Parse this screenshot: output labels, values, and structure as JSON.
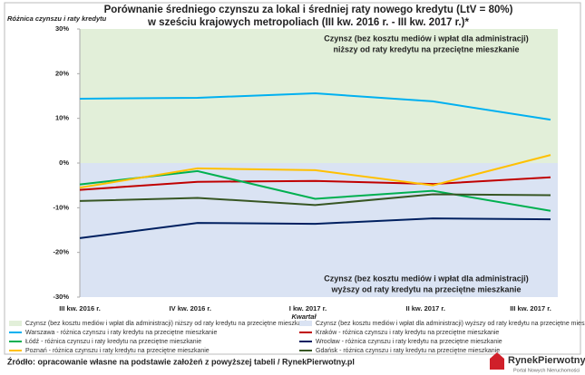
{
  "chart_data": {
    "type": "line",
    "title": [
      "Porównanie średniego czynszu za lokal i średniej raty nowego kredytu (LtV = 80%)",
      "w sześciu krajowych metropoliach (III kw. 2016 r. - III kw. 2017 r.)*"
    ],
    "ylabel": "Różnica czynszu i raty kredytu",
    "xlabel": "Kwartał",
    "categories": [
      "III kw. 2016 r.",
      "IV kw. 2016 r.",
      "I kw. 2017 r.",
      "II kw. 2017 r.",
      "III kw. 2017 r."
    ],
    "ylim": [
      -30,
      30
    ],
    "yticks": [
      {
        "value": 30,
        "label": "30%"
      },
      {
        "value": 20,
        "label": "20%"
      },
      {
        "value": 10,
        "label": "10%"
      },
      {
        "value": 0,
        "label": "0%"
      },
      {
        "value": -10,
        "label": "-10%"
      },
      {
        "value": -20,
        "label": "-20%"
      },
      {
        "value": -30,
        "label": "-30%"
      }
    ],
    "areas": [
      {
        "name": "Czynsz (bez kosztu mediów i wpłat dla administracji) niższy od raty kredytu na przeciętne mieszkanie",
        "color": "#e2efd9",
        "range": [
          0,
          30
        ]
      },
      {
        "name": "Czynsz (bez kosztu mediów i wpłat dla administracji) wyższy od raty kredytu na przeciętne mieszkanie",
        "color": "#dae3f3",
        "range": [
          -30,
          0
        ]
      }
    ],
    "series": [
      {
        "name": "Warszawa - różnica czynszu i raty kredytu na przeciętne mieszkanie",
        "color": "#00b0f0",
        "values": [
          14.4,
          14.6,
          15.6,
          13.8,
          9.7
        ]
      },
      {
        "name": "Kraków - różnica czynszu i raty kredytu na przeciętne mieszkanie",
        "color": "#c00000",
        "values": [
          -6.0,
          -4.2,
          -4.0,
          -4.7,
          -3.2
        ]
      },
      {
        "name": "Łódź - różnica czynszu i raty kredytu na przeciętne mieszkanie",
        "color": "#00b050",
        "values": [
          -4.8,
          -1.8,
          -8.0,
          -6.2,
          -10.7
        ]
      },
      {
        "name": "Wrocław - różnica czynszu i raty kredytu na przeciętne mieszkanie",
        "color": "#002060",
        "values": [
          -16.8,
          -13.4,
          -13.6,
          -12.4,
          -12.6
        ]
      },
      {
        "name": "Poznań - różnica czynszu i raty kredytu na przeciętne mieszkanie",
        "color": "#ffc000",
        "values": [
          -5.5,
          -1.2,
          -1.6,
          -5.0,
          1.8
        ]
      },
      {
        "name": "Gdańsk - różnica czynszu i raty kredytu na przeciętne mieszkanie",
        "color": "#375623",
        "values": [
          -8.5,
          -7.8,
          -9.4,
          -7.0,
          -7.2
        ]
      }
    ],
    "annotations": [
      [
        "Czynsz (bez kosztu mediów i wpłat dla administracji)",
        "niższy od raty kredytu na przeciętne mieszkanie"
      ],
      [
        "Czynsz (bez kosztu mediów i wpłat dla administracji)",
        "wyższy od raty kredytu na przeciętne mieszkanie"
      ]
    ]
  },
  "footer": {
    "source": "Źródło: opracowanie własne na podstawie założeń z powyższej tabeli / RynekPierwotny.pl",
    "logo": "RynekPierwotny",
    "tagline": "Portal Nowych Nieruchomości"
  }
}
